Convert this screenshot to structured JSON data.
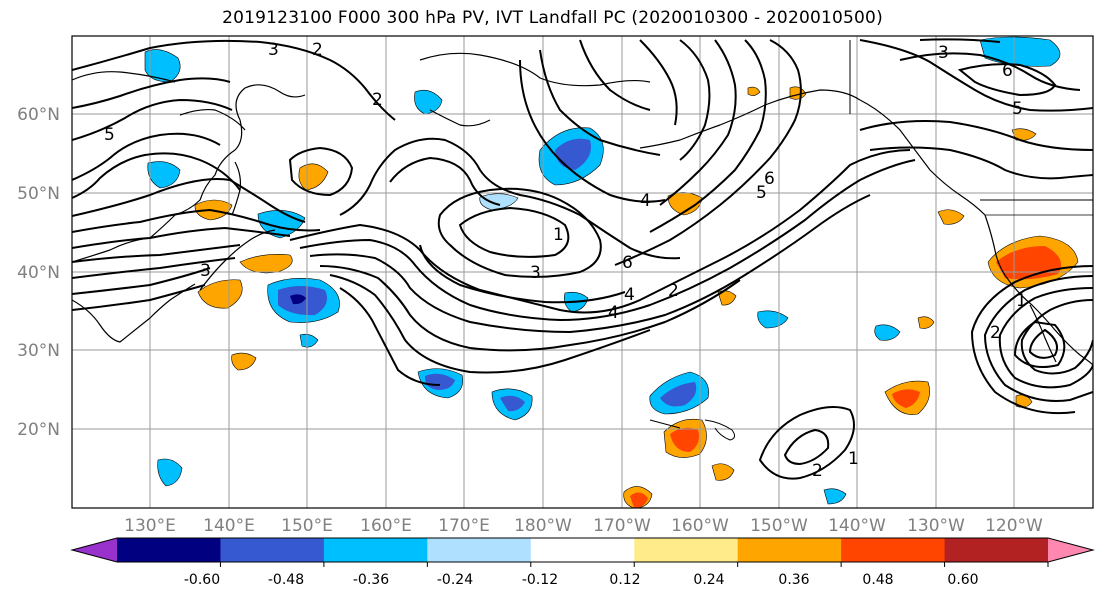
{
  "title": "2019123100 F000 300 hPa PV, IVT Landfall PC (2020010300 - 2020010500)",
  "lat_labels": [
    "60°N",
    "50°N",
    "40°N",
    "30°N",
    "20°N"
  ],
  "lon_labels": [
    "130°E",
    "140°E",
    "150°E",
    "160°E",
    "170°E",
    "180°W",
    "170°W",
    "160°W",
    "150°W",
    "140°W",
    "130°W",
    "120°W"
  ],
  "colorbar": {
    "tick_labels": [
      "-0.60",
      "-0.48",
      "-0.36",
      "-0.24",
      "-0.12",
      "0.12",
      "0.24",
      "0.36",
      "0.48",
      "0.60"
    ],
    "colors": [
      "#9932cc",
      "#000080",
      "#3658d0",
      "#00bfff",
      "#b0e0ff",
      "#ffffff",
      "#ffeb8a",
      "#ffa500",
      "#ff4500",
      "#b22222",
      "#ff88b0"
    ]
  },
  "contour_labels": [
    "3",
    "2",
    "5",
    "2",
    "3",
    "6",
    "5",
    "1",
    "3",
    "6",
    "4",
    "2",
    "4",
    "3",
    "4",
    "6",
    "5",
    "1",
    "2",
    "1",
    "2"
  ]
}
